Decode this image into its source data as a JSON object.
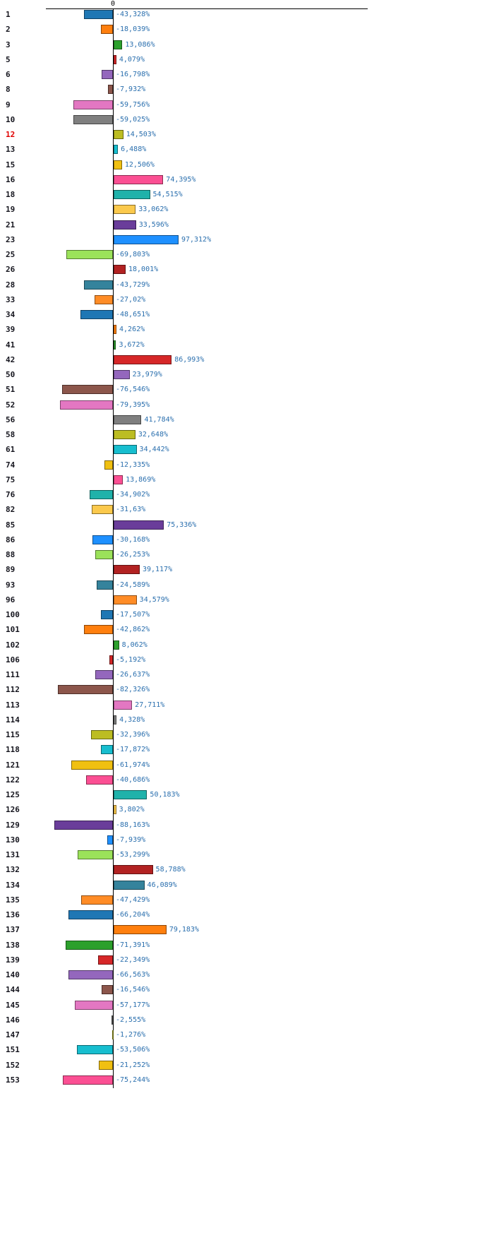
{
  "chart_data": {
    "type": "bar",
    "orientation": "horizontal",
    "title": "",
    "value_suffix": "%",
    "decimal_separator": ",",
    "grid": false,
    "legend": false,
    "xlim": [
      -100,
      100
    ],
    "axis": {
      "zero_label": "0",
      "zero_tick_position": "top",
      "baseline_color": "#000000"
    },
    "label_color": "#15151e",
    "highlight_label_color": "#e00000",
    "value_label_color": "#2a6fae",
    "palette": [
      "#1f77b4",
      "#ff7f0e",
      "#2ca02c",
      "#d62728",
      "#9467bd",
      "#8c564b",
      "#e377c2",
      "#7f7f7f",
      "#bcbd22",
      "#17becf",
      "#f0c011",
      "#fb4f93",
      "#20b2aa",
      "#fbc94c",
      "#6a3d9a",
      "#1e90ff",
      "#9be25a",
      "#b22222",
      "#35839c",
      "#ff8c26"
    ],
    "rows": [
      {
        "label": "1",
        "value": -43.328,
        "display": "-43,328%",
        "color": "#1f77b4"
      },
      {
        "label": "2",
        "value": -18.039,
        "display": "-18,039%",
        "color": "#ff7f0e"
      },
      {
        "label": "3",
        "value": 13.086,
        "display": "13,086%",
        "color": "#2ca02c"
      },
      {
        "label": "5",
        "value": 4.079,
        "display": "4,079%",
        "color": "#d62728"
      },
      {
        "label": "6",
        "value": -16.798,
        "display": "-16,798%",
        "color": "#9467bd"
      },
      {
        "label": "8",
        "value": -7.932,
        "display": "-7,932%",
        "color": "#8c564b"
      },
      {
        "label": "9",
        "value": -59.756,
        "display": "-59,756%",
        "color": "#e377c2"
      },
      {
        "label": "10",
        "value": -59.025,
        "display": "-59,025%",
        "color": "#7f7f7f"
      },
      {
        "label": "12",
        "value": 14.503,
        "display": "14,503%",
        "color": "#bcbd22",
        "highlight": true
      },
      {
        "label": "13",
        "value": 6.488,
        "display": "6,488%",
        "color": "#17becf"
      },
      {
        "label": "15",
        "value": 12.506,
        "display": "12,506%",
        "color": "#f0c011"
      },
      {
        "label": "16",
        "value": 74.395,
        "display": "74,395%",
        "color": "#fb4f93"
      },
      {
        "label": "18",
        "value": 54.515,
        "display": "54,515%",
        "color": "#20b2aa"
      },
      {
        "label": "19",
        "value": 33.062,
        "display": "33,062%",
        "color": "#fbc94c"
      },
      {
        "label": "21",
        "value": 33.596,
        "display": "33,596%",
        "color": "#6a3d9a"
      },
      {
        "label": "23",
        "value": 97.312,
        "display": "97,312%",
        "color": "#1e90ff"
      },
      {
        "label": "25",
        "value": -69.803,
        "display": "-69,803%",
        "color": "#9be25a"
      },
      {
        "label": "26",
        "value": 18.001,
        "display": "18,001%",
        "color": "#b22222"
      },
      {
        "label": "28",
        "value": -43.729,
        "display": "-43,729%",
        "color": "#35839c"
      },
      {
        "label": "33",
        "value": -27.02,
        "display": "-27,02%",
        "color": "#ff8c26"
      },
      {
        "label": "34",
        "value": -48.651,
        "display": "-48,651%",
        "color": "#1f77b4"
      },
      {
        "label": "39",
        "value": 4.262,
        "display": "4,262%",
        "color": "#ff7f0e"
      },
      {
        "label": "41",
        "value": 3.672,
        "display": "3,672%",
        "color": "#2ca02c"
      },
      {
        "label": "42",
        "value": 86.993,
        "display": "86,993%",
        "color": "#d62728"
      },
      {
        "label": "50",
        "value": 23.979,
        "display": "23,979%",
        "color": "#9467bd"
      },
      {
        "label": "51",
        "value": -76.546,
        "display": "-76,546%",
        "color": "#8c564b"
      },
      {
        "label": "52",
        "value": -79.395,
        "display": "-79,395%",
        "color": "#e377c2"
      },
      {
        "label": "56",
        "value": 41.784,
        "display": "41,784%",
        "color": "#7f7f7f"
      },
      {
        "label": "58",
        "value": 32.648,
        "display": "32,648%",
        "color": "#bcbd22"
      },
      {
        "label": "61",
        "value": 34.442,
        "display": "34,442%",
        "color": "#17becf"
      },
      {
        "label": "74",
        "value": -12.335,
        "display": "-12,335%",
        "color": "#f0c011"
      },
      {
        "label": "75",
        "value": 13.869,
        "display": "13,869%",
        "color": "#fb4f93"
      },
      {
        "label": "76",
        "value": -34.902,
        "display": "-34,902%",
        "color": "#20b2aa"
      },
      {
        "label": "82",
        "value": -31.63,
        "display": "-31,63%",
        "color": "#fbc94c"
      },
      {
        "label": "85",
        "value": 75.336,
        "display": "75,336%",
        "color": "#6a3d9a"
      },
      {
        "label": "86",
        "value": -30.168,
        "display": "-30,168%",
        "color": "#1e90ff"
      },
      {
        "label": "88",
        "value": -26.253,
        "display": "-26,253%",
        "color": "#9be25a"
      },
      {
        "label": "89",
        "value": 39.117,
        "display": "39,117%",
        "color": "#b22222"
      },
      {
        "label": "93",
        "value": -24.589,
        "display": "-24,589%",
        "color": "#35839c"
      },
      {
        "label": "96",
        "value": 34.579,
        "display": "34,579%",
        "color": "#ff8c26"
      },
      {
        "label": "100",
        "value": -17.507,
        "display": "-17,507%",
        "color": "#1f77b4"
      },
      {
        "label": "101",
        "value": -42.862,
        "display": "-42,862%",
        "color": "#ff7f0e"
      },
      {
        "label": "102",
        "value": 8.062,
        "display": "8,062%",
        "color": "#2ca02c"
      },
      {
        "label": "106",
        "value": -5.192,
        "display": "-5,192%",
        "color": "#d62728"
      },
      {
        "label": "111",
        "value": -26.637,
        "display": "-26,637%",
        "color": "#9467bd"
      },
      {
        "label": "112",
        "value": -82.326,
        "display": "-82,326%",
        "color": "#8c564b"
      },
      {
        "label": "113",
        "value": 27.711,
        "display": "27,711%",
        "color": "#e377c2"
      },
      {
        "label": "114",
        "value": 4.328,
        "display": "4,328%",
        "color": "#7f7f7f"
      },
      {
        "label": "115",
        "value": -32.396,
        "display": "-32,396%",
        "color": "#bcbd22"
      },
      {
        "label": "118",
        "value": -17.872,
        "display": "-17,872%",
        "color": "#17becf"
      },
      {
        "label": "121",
        "value": -61.974,
        "display": "-61,974%",
        "color": "#f0c011"
      },
      {
        "label": "122",
        "value": -40.686,
        "display": "-40,686%",
        "color": "#fb4f93"
      },
      {
        "label": "125",
        "value": 50.183,
        "display": "50,183%",
        "color": "#20b2aa"
      },
      {
        "label": "126",
        "value": 3.802,
        "display": "3,802%",
        "color": "#fbc94c"
      },
      {
        "label": "129",
        "value": -88.163,
        "display": "-88,163%",
        "color": "#6a3d9a"
      },
      {
        "label": "130",
        "value": -7.939,
        "display": "-7,939%",
        "color": "#1e90ff"
      },
      {
        "label": "131",
        "value": -53.299,
        "display": "-53,299%",
        "color": "#9be25a"
      },
      {
        "label": "132",
        "value": 58.788,
        "display": "58,788%",
        "color": "#b22222"
      },
      {
        "label": "134",
        "value": 46.089,
        "display": "46,089%",
        "color": "#35839c"
      },
      {
        "label": "135",
        "value": -47.429,
        "display": "-47,429%",
        "color": "#ff8c26"
      },
      {
        "label": "136",
        "value": -66.204,
        "display": "-66,204%",
        "color": "#1f77b4"
      },
      {
        "label": "137",
        "value": 79.183,
        "display": "79,183%",
        "color": "#ff7f0e"
      },
      {
        "label": "138",
        "value": -71.391,
        "display": "-71,391%",
        "color": "#2ca02c"
      },
      {
        "label": "139",
        "value": -22.349,
        "display": "-22,349%",
        "color": "#d62728"
      },
      {
        "label": "140",
        "value": -66.563,
        "display": "-66,563%",
        "color": "#9467bd"
      },
      {
        "label": "144",
        "value": -16.546,
        "display": "-16,546%",
        "color": "#8c564b"
      },
      {
        "label": "145",
        "value": -57.177,
        "display": "-57,177%",
        "color": "#e377c2"
      },
      {
        "label": "146",
        "value": -2.555,
        "display": "-2,555%",
        "color": "#7f7f7f"
      },
      {
        "label": "147",
        "value": -1.276,
        "display": "-1,276%",
        "color": "#bcbd22"
      },
      {
        "label": "151",
        "value": -53.506,
        "display": "-53,506%",
        "color": "#17becf"
      },
      {
        "label": "152",
        "value": -21.252,
        "display": "-21,252%",
        "color": "#f0c011"
      },
      {
        "label": "153",
        "value": -75.244,
        "display": "-75,244%",
        "color": "#fb4f93"
      }
    ]
  }
}
